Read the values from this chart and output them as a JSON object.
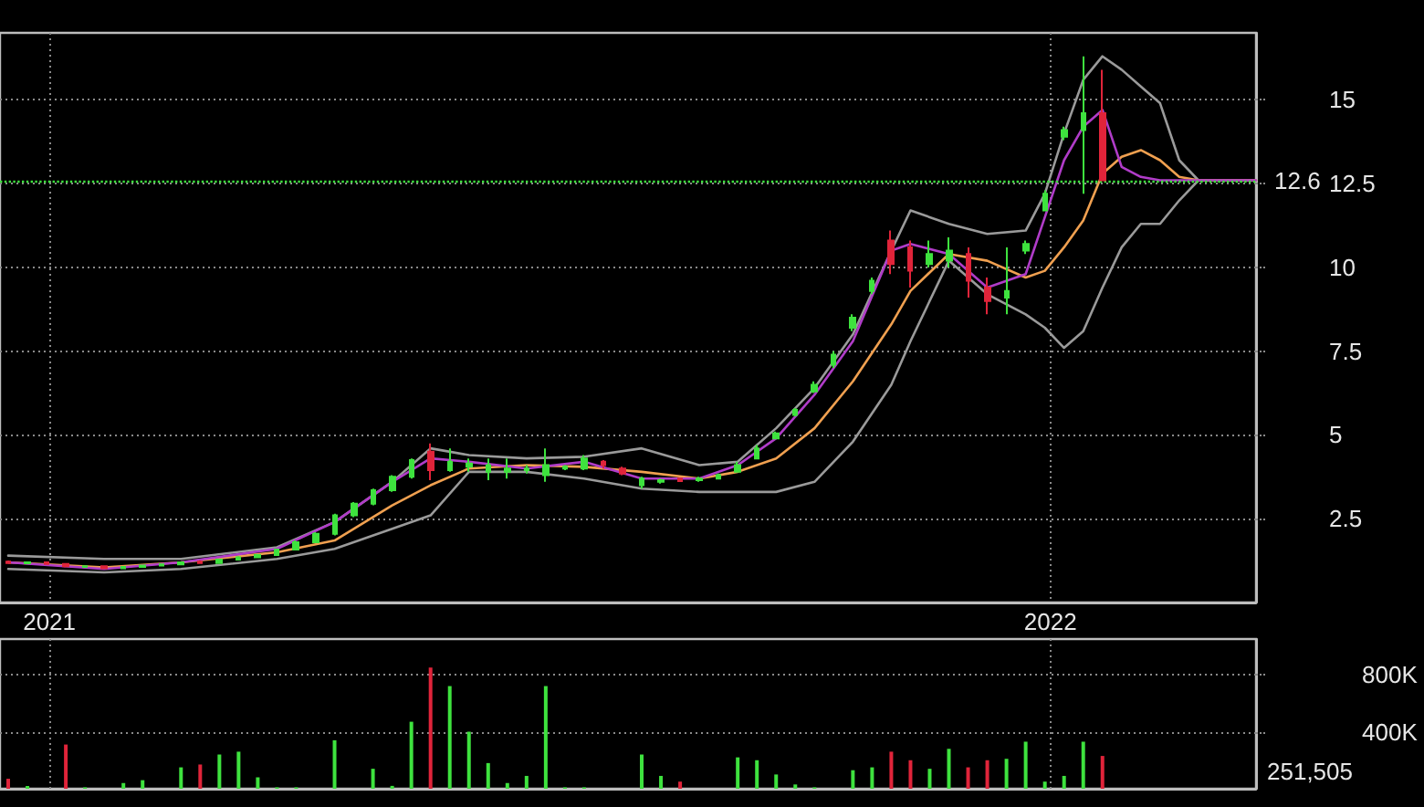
{
  "chart_data": [
    {
      "type": "candlestick",
      "xlim": [
        "2020-12-14",
        "2022-03-17"
      ],
      "xticks": [
        {
          "value": "2021-01-01",
          "label": "2021"
        },
        {
          "value": "2022-01-01",
          "label": "2022"
        }
      ],
      "ylim": [
        0,
        17
      ],
      "yticks": [
        2.5,
        5,
        7.5,
        10,
        12.5,
        15
      ],
      "grid": true,
      "ref_lines": [
        {
          "axis": "y",
          "value": 12.6,
          "label": "12.6",
          "color": "#3ee23e",
          "line_style": "dotted"
        }
      ],
      "series": [
        {
          "type": "line",
          "color": "#9a9a9a",
          "x": [
            "2020-12-17",
            "2021-01-21",
            "2021-02-18",
            "2021-03-25",
            "2021-04-15",
            "2021-05-06",
            "2021-05-20",
            "2021-06-03",
            "2021-06-24",
            "2021-07-15",
            "2021-08-05",
            "2021-08-26",
            "2021-09-09",
            "2021-09-23",
            "2021-10-07",
            "2021-10-21",
            "2021-11-04",
            "2021-11-11",
            "2021-11-25",
            "2021-12-09",
            "2021-12-23",
            "2021-12-30",
            "2022-01-06",
            "2022-01-13",
            "2022-01-20",
            "2022-01-27",
            "2022-02-03",
            "2022-02-10",
            "2022-02-17",
            "2022-02-24",
            "2022-03-03",
            "2022-03-17"
          ],
          "values": [
            1.4,
            1.3,
            1.3,
            1.65,
            2.4,
            3.6,
            4.6,
            4.4,
            4.3,
            4.35,
            4.6,
            4.1,
            4.2,
            5.2,
            6.4,
            8.0,
            10.5,
            11.7,
            11.3,
            11.0,
            11.1,
            12.2,
            14.0,
            15.6,
            16.3,
            15.9,
            15.4,
            14.9,
            13.2,
            12.6,
            12.6,
            12.6
          ]
        },
        {
          "type": "line",
          "color": "#9a9a9a",
          "x": [
            "2020-12-17",
            "2021-01-21",
            "2021-02-18",
            "2021-03-25",
            "2021-04-15",
            "2021-05-06",
            "2021-05-20",
            "2021-06-03",
            "2021-06-24",
            "2021-07-15",
            "2021-08-05",
            "2021-08-26",
            "2021-09-09",
            "2021-09-23",
            "2021-10-07",
            "2021-10-21",
            "2021-11-04",
            "2021-11-11",
            "2021-11-25",
            "2021-12-09",
            "2021-12-23",
            "2021-12-30",
            "2022-01-06",
            "2022-01-13",
            "2022-01-20",
            "2022-01-27",
            "2022-02-03",
            "2022-02-10",
            "2022-02-17",
            "2022-02-24",
            "2022-03-03",
            "2022-03-17"
          ],
          "values": [
            1.0,
            0.9,
            1.0,
            1.3,
            1.6,
            2.2,
            2.6,
            3.9,
            3.9,
            3.7,
            3.4,
            3.3,
            3.3,
            3.3,
            3.6,
            4.8,
            6.5,
            7.8,
            10.2,
            9.2,
            8.6,
            8.2,
            7.6,
            8.1,
            9.4,
            10.6,
            11.3,
            11.3,
            12.0,
            12.6,
            12.6,
            12.6
          ]
        },
        {
          "type": "line",
          "color": "#f0a050",
          "x": [
            "2020-12-17",
            "2021-01-21",
            "2021-02-18",
            "2021-03-25",
            "2021-04-15",
            "2021-05-06",
            "2021-05-20",
            "2021-06-03",
            "2021-06-24",
            "2021-07-15",
            "2021-08-05",
            "2021-08-26",
            "2021-09-09",
            "2021-09-23",
            "2021-10-07",
            "2021-10-21",
            "2021-11-04",
            "2021-11-11",
            "2021-11-25",
            "2021-12-09",
            "2021-12-23",
            "2021-12-30",
            "2022-01-06",
            "2022-01-13",
            "2022-01-20",
            "2022-01-27",
            "2022-02-03",
            "2022-02-10",
            "2022-02-17",
            "2022-02-24",
            "2022-03-03",
            "2022-03-17"
          ],
          "values": [
            1.2,
            1.05,
            1.2,
            1.5,
            1.85,
            2.9,
            3.5,
            4.0,
            4.1,
            4.05,
            3.9,
            3.7,
            3.9,
            4.3,
            5.2,
            6.6,
            8.3,
            9.3,
            10.4,
            10.2,
            9.7,
            9.9,
            10.6,
            11.4,
            12.8,
            13.3,
            13.5,
            13.2,
            12.7,
            12.6,
            12.6,
            12.6
          ]
        },
        {
          "type": "line",
          "color": "#b03cc8",
          "x": [
            "2020-12-17",
            "2021-01-21",
            "2021-02-18",
            "2021-03-25",
            "2021-04-15",
            "2021-05-06",
            "2021-05-20",
            "2021-06-03",
            "2021-06-24",
            "2021-07-15",
            "2021-08-05",
            "2021-08-26",
            "2021-09-09",
            "2021-09-23",
            "2021-10-07",
            "2021-10-21",
            "2021-11-04",
            "2021-11-11",
            "2021-11-25",
            "2021-12-09",
            "2021-12-23",
            "2021-12-30",
            "2022-01-06",
            "2022-01-13",
            "2022-01-20",
            "2022-01-27",
            "2022-02-03",
            "2022-02-10",
            "2022-02-17",
            "2022-02-24",
            "2022-03-03",
            "2022-03-17"
          ],
          "values": [
            1.2,
            1.0,
            1.2,
            1.6,
            2.4,
            3.6,
            4.3,
            4.2,
            4.0,
            4.2,
            3.7,
            3.7,
            4.1,
            4.9,
            6.2,
            7.8,
            10.5,
            10.7,
            10.4,
            9.4,
            9.8,
            11.5,
            13.2,
            14.2,
            14.7,
            13.0,
            12.7,
            12.6,
            12.6,
            12.6,
            12.6,
            12.6
          ]
        },
        {
          "type": "candlestick",
          "x": [
            "2020-12-17",
            "2020-12-24",
            "2020-12-31",
            "2021-01-07",
            "2021-01-14",
            "2021-01-21",
            "2021-01-28",
            "2021-02-04",
            "2021-02-11",
            "2021-02-18",
            "2021-02-25",
            "2021-03-04",
            "2021-03-11",
            "2021-03-18",
            "2021-03-25",
            "2021-04-01",
            "2021-04-08",
            "2021-04-15",
            "2021-04-22",
            "2021-04-29",
            "2021-05-06",
            "2021-05-13",
            "2021-05-20",
            "2021-05-27",
            "2021-06-03",
            "2021-06-10",
            "2021-06-17",
            "2021-06-24",
            "2021-07-01",
            "2021-07-08",
            "2021-07-15",
            "2021-07-22",
            "2021-07-29",
            "2021-08-05",
            "2021-08-12",
            "2021-08-19",
            "2021-08-26",
            "2021-09-02",
            "2021-09-09",
            "2021-09-16",
            "2021-09-23",
            "2021-09-30",
            "2021-10-07",
            "2021-10-14",
            "2021-10-21",
            "2021-10-28",
            "2021-11-04",
            "2021-11-11",
            "2021-11-18",
            "2021-11-25",
            "2021-12-02",
            "2021-12-09",
            "2021-12-16",
            "2021-12-23",
            "2021-12-30",
            "2022-01-06",
            "2022-01-13",
            "2022-01-20"
          ],
          "ohlc": [
            [
              1.22,
              1.25,
              1.15,
              1.18
            ],
            [
              1.17,
              1.22,
              1.15,
              1.2
            ],
            [
              1.2,
              1.2,
              1.14,
              1.15
            ],
            [
              1.15,
              1.18,
              1.05,
              1.08
            ],
            [
              1.06,
              1.1,
              1.04,
              1.08
            ],
            [
              1.08,
              1.08,
              1.0,
              1.02
            ],
            [
              1.02,
              1.08,
              1.0,
              1.06
            ],
            [
              1.06,
              1.12,
              1.05,
              1.1
            ],
            [
              1.1,
              1.16,
              1.08,
              1.14
            ],
            [
              1.14,
              1.22,
              1.12,
              1.2
            ],
            [
              1.22,
              1.26,
              1.16,
              1.18
            ],
            [
              1.18,
              1.3,
              1.17,
              1.28
            ],
            [
              1.28,
              1.38,
              1.26,
              1.35
            ],
            [
              1.35,
              1.45,
              1.33,
              1.42
            ],
            [
              1.42,
              1.6,
              1.4,
              1.58
            ],
            [
              1.58,
              1.85,
              1.55,
              1.8
            ],
            [
              1.8,
              2.1,
              1.78,
              2.05
            ],
            [
              2.05,
              2.65,
              2.0,
              2.6
            ],
            [
              2.6,
              3.0,
              2.55,
              2.95
            ],
            [
              2.95,
              3.4,
              2.9,
              3.35
            ],
            [
              3.35,
              3.8,
              3.3,
              3.75
            ],
            [
              3.75,
              4.3,
              3.7,
              4.25
            ],
            [
              4.5,
              4.75,
              3.65,
              3.95
            ],
            [
              3.95,
              4.6,
              3.9,
              4.2
            ],
            [
              4.05,
              4.3,
              3.9,
              4.15
            ],
            [
              3.9,
              4.3,
              3.65,
              4.1
            ],
            [
              3.9,
              4.3,
              3.7,
              4.0
            ],
            [
              3.95,
              4.1,
              3.85,
              4.0
            ],
            [
              3.8,
              4.6,
              3.6,
              4.1
            ],
            [
              4.0,
              4.1,
              3.95,
              4.05
            ],
            [
              4.0,
              4.4,
              3.95,
              4.3
            ],
            [
              4.2,
              4.25,
              4.0,
              4.1
            ],
            [
              4.0,
              4.05,
              3.8,
              3.85
            ],
            [
              3.5,
              3.75,
              3.4,
              3.7
            ],
            [
              3.6,
              3.7,
              3.55,
              3.65
            ],
            [
              3.7,
              3.72,
              3.6,
              3.62
            ],
            [
              3.65,
              3.75,
              3.6,
              3.7
            ],
            [
              3.7,
              3.85,
              3.68,
              3.8
            ],
            [
              3.9,
              4.2,
              3.9,
              4.1
            ],
            [
              4.3,
              4.7,
              4.3,
              4.6
            ],
            [
              4.9,
              5.1,
              4.9,
              5.05
            ],
            [
              5.6,
              5.8,
              5.55,
              5.75
            ],
            [
              6.3,
              6.6,
              6.25,
              6.5
            ],
            [
              7.1,
              7.5,
              7.0,
              7.4
            ],
            [
              8.2,
              8.6,
              8.1,
              8.5
            ],
            [
              9.3,
              9.7,
              9.2,
              9.6
            ],
            [
              10.8,
              11.1,
              9.8,
              10.1
            ],
            [
              10.6,
              10.8,
              9.4,
              9.9
            ],
            [
              10.1,
              10.8,
              10.0,
              10.4
            ],
            [
              10.2,
              10.9,
              10.0,
              10.5
            ],
            [
              10.4,
              10.6,
              9.1,
              9.6
            ],
            [
              9.4,
              9.7,
              8.6,
              9.0
            ],
            [
              9.1,
              10.6,
              8.6,
              9.3
            ],
            [
              10.5,
              10.8,
              10.4,
              10.7
            ],
            [
              11.7,
              12.3,
              11.7,
              12.2
            ],
            [
              13.9,
              14.2,
              13.8,
              14.1
            ],
            [
              14.1,
              16.3,
              12.2,
              14.6
            ],
            [
              14.6,
              15.9,
              12.6,
              12.6
            ]
          ],
          "colors": [
            "#e0243a",
            "#3ee23e",
            "#e0243a",
            "#e0243a",
            "#3ee23e",
            "#e0243a",
            "#3ee23e",
            "#3ee23e",
            "#3ee23e",
            "#3ee23e",
            "#e0243a",
            "#3ee23e",
            "#3ee23e",
            "#3ee23e",
            "#3ee23e",
            "#3ee23e",
            "#3ee23e",
            "#3ee23e",
            "#3ee23e",
            "#3ee23e",
            "#3ee23e",
            "#3ee23e",
            "#e0243a",
            "#3ee23e",
            "#3ee23e",
            "#3ee23e",
            "#3ee23e",
            "#3ee23e",
            "#3ee23e",
            "#3ee23e",
            "#3ee23e",
            "#e0243a",
            "#e0243a",
            "#3ee23e",
            "#3ee23e",
            "#e0243a",
            "#3ee23e",
            "#3ee23e",
            "#3ee23e",
            "#3ee23e",
            "#3ee23e",
            "#3ee23e",
            "#3ee23e",
            "#3ee23e",
            "#3ee23e",
            "#3ee23e",
            "#e0243a",
            "#e0243a",
            "#3ee23e",
            "#3ee23e",
            "#e0243a",
            "#e0243a",
            "#3ee23e",
            "#3ee23e",
            "#3ee23e",
            "#3ee23e",
            "#3ee23e",
            "#e0243a"
          ]
        }
      ]
    },
    {
      "type": "bar",
      "xlim": [
        "2020-12-14",
        "2022-03-17"
      ],
      "xticks": [
        {
          "value": "2021-01-01",
          "label": null
        },
        {
          "value": "2022-01-01",
          "label": null
        }
      ],
      "ylim": [
        0,
        1050000
      ],
      "yticks": [
        {
          "value": 400000,
          "label": "400K"
        },
        {
          "value": 800000,
          "label": "800K"
        }
      ],
      "grid": true,
      "tick_labels": "y",
      "annotations": [
        "251,505"
      ],
      "x": [
        "2020-12-17",
        "2020-12-24",
        "2021-01-07",
        "2021-01-14",
        "2021-01-28",
        "2021-02-04",
        "2021-02-18",
        "2021-02-25",
        "2021-03-04",
        "2021-03-11",
        "2021-03-18",
        "2021-03-25",
        "2021-04-01",
        "2021-04-15",
        "2021-04-29",
        "2021-05-06",
        "2021-05-13",
        "2021-05-20",
        "2021-05-27",
        "2021-06-03",
        "2021-06-10",
        "2021-06-17",
        "2021-06-24",
        "2021-07-01",
        "2021-07-08",
        "2021-07-15",
        "2021-08-05",
        "2021-08-12",
        "2021-08-19",
        "2021-09-09",
        "2021-09-16",
        "2021-09-23",
        "2021-09-30",
        "2021-10-07",
        "2021-10-21",
        "2021-10-28",
        "2021-11-04",
        "2021-11-11",
        "2021-11-18",
        "2021-11-25",
        "2021-12-02",
        "2021-12-09",
        "2021-12-16",
        "2021-12-23",
        "2021-12-30",
        "2022-01-06",
        "2022-01-13",
        "2022-01-20"
      ],
      "values": [
        70000,
        20000,
        310000,
        10000,
        40000,
        60000,
        150000,
        170000,
        240000,
        260000,
        80000,
        10000,
        10000,
        340000,
        140000,
        20000,
        470000,
        850000,
        720000,
        400000,
        180000,
        40000,
        90000,
        720000,
        10000,
        10000,
        240000,
        90000,
        50000,
        220000,
        200000,
        100000,
        30000,
        10000,
        130000,
        150000,
        260000,
        200000,
        140000,
        280000,
        150000,
        200000,
        210000,
        330000,
        50000,
        90000,
        330000,
        230000
      ],
      "colors": [
        "#e0243a",
        "#3ee23e",
        "#e0243a",
        "#3ee23e",
        "#3ee23e",
        "#3ee23e",
        "#3ee23e",
        "#e0243a",
        "#3ee23e",
        "#3ee23e",
        "#3ee23e",
        "#3ee23e",
        "#3ee23e",
        "#3ee23e",
        "#3ee23e",
        "#3ee23e",
        "#3ee23e",
        "#e0243a",
        "#3ee23e",
        "#3ee23e",
        "#3ee23e",
        "#3ee23e",
        "#3ee23e",
        "#3ee23e",
        "#3ee23e",
        "#3ee23e",
        "#3ee23e",
        "#3ee23e",
        "#e0243a",
        "#3ee23e",
        "#3ee23e",
        "#3ee23e",
        "#3ee23e",
        "#3ee23e",
        "#3ee23e",
        "#3ee23e",
        "#e0243a",
        "#e0243a",
        "#3ee23e",
        "#3ee23e",
        "#e0243a",
        "#e0243a",
        "#3ee23e",
        "#3ee23e",
        "#3ee23e",
        "#3ee23e",
        "#3ee23e",
        "#e0243a"
      ]
    }
  ]
}
